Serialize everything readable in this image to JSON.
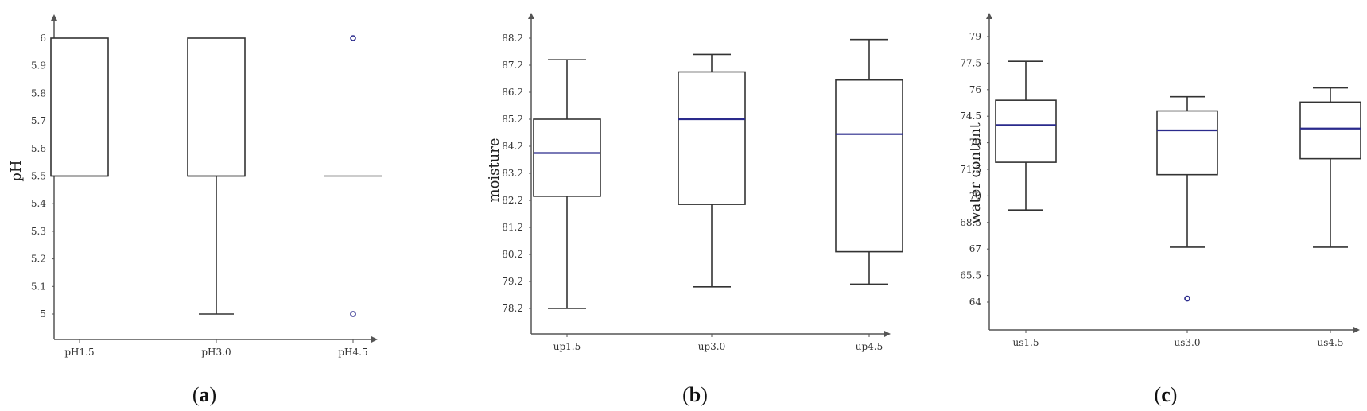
{
  "chart_data": [
    {
      "type": "box",
      "ylabel": "pH",
      "ylabel_color": "#c8961e",
      "caption": "(a)",
      "yticks": [
        5,
        5.1,
        5.2,
        5.3,
        5.4,
        5.5,
        5.6,
        5.7,
        5.8,
        5.9,
        6
      ],
      "ylim": [
        4.9,
        6.1
      ],
      "categories": [
        "pH1.5",
        "pH3.0",
        "pH4.5"
      ],
      "boxes": [
        {
          "whisker_low": 5.5,
          "q1": 5.5,
          "median": 5.5,
          "q3": 6.0,
          "whisker_high": 6.0,
          "outliers": []
        },
        {
          "whisker_low": 5.0,
          "q1": 5.5,
          "median": 5.5,
          "q3": 6.0,
          "whisker_high": 6.0,
          "outliers": []
        },
        {
          "whisker_low": 5.5,
          "q1": 5.5,
          "median": 5.5,
          "q3": 5.5,
          "whisker_high": 5.5,
          "outliers": [
            6.0,
            5.0
          ]
        }
      ]
    },
    {
      "type": "box",
      "ylabel": "moisture",
      "ylabel_color": "#222222",
      "caption": "(b)",
      "yticks": [
        78.2,
        79.2,
        80.2,
        81.2,
        82.2,
        83.2,
        84.2,
        85.2,
        86.2,
        87.2,
        88.2
      ],
      "ylim": [
        77.4,
        89.0
      ],
      "categories": [
        "up1.5",
        "up3.0",
        "up4.5"
      ],
      "boxes": [
        {
          "whisker_low": 78.2,
          "q1": 82.35,
          "median": 83.95,
          "q3": 85.2,
          "whisker_high": 87.4,
          "outliers": []
        },
        {
          "whisker_low": 79.0,
          "q1": 82.05,
          "median": 85.2,
          "q3": 86.95,
          "whisker_high": 87.6,
          "outliers": []
        },
        {
          "whisker_low": 79.1,
          "q1": 80.3,
          "median": 84.65,
          "q3": 86.65,
          "whisker_high": 88.15,
          "outliers": []
        }
      ]
    },
    {
      "type": "box",
      "ylabel": "water content",
      "ylabel_color": "#222222",
      "caption": "(c)",
      "yticks": [
        64,
        65.5,
        67,
        68.5,
        70,
        71.5,
        73,
        74.5,
        76,
        77.5,
        79
      ],
      "ylim": [
        62.7,
        80.3
      ],
      "categories": [
        "us1.5",
        "us3.0",
        "us4.5"
      ],
      "boxes": [
        {
          "whisker_low": 69.2,
          "q1": 71.9,
          "median": 74.0,
          "q3": 75.4,
          "whisker_high": 77.6,
          "outliers": []
        },
        {
          "whisker_low": 67.1,
          "q1": 71.2,
          "median": 73.7,
          "q3": 74.8,
          "whisker_high": 75.6,
          "outliers": [
            64.2
          ]
        },
        {
          "whisker_low": 67.1,
          "q1": 72.1,
          "median": 73.8,
          "q3": 75.3,
          "whisker_high": 76.1,
          "outliers": []
        }
      ]
    }
  ],
  "colors": {
    "box_stroke": "#333333",
    "median_highlight": "#2a2a8c",
    "outlier": "#2a2a8c",
    "axis": "#555555"
  }
}
